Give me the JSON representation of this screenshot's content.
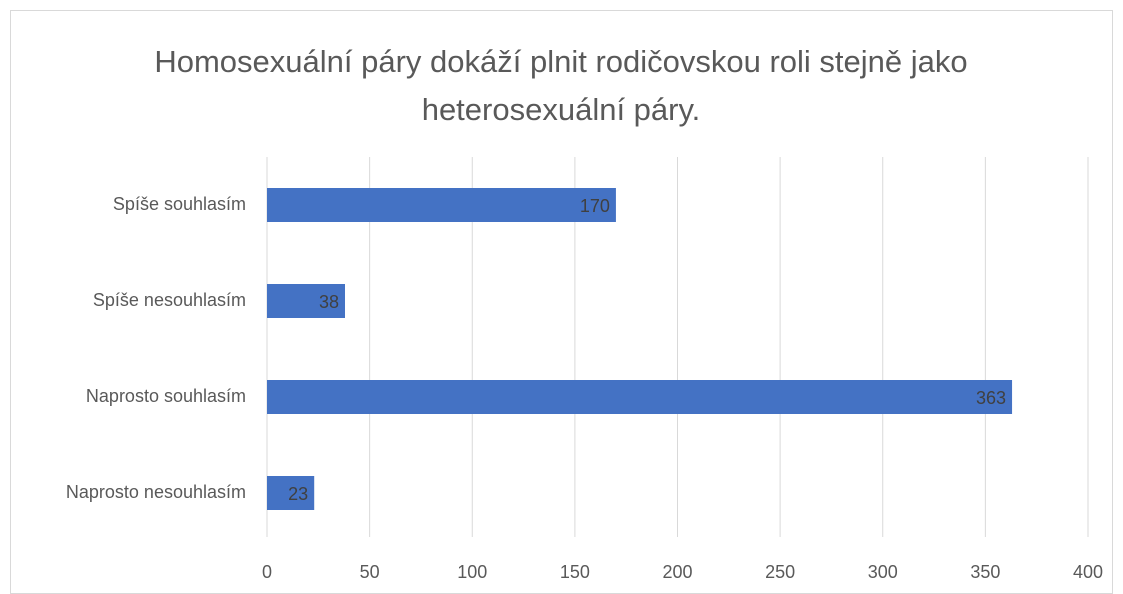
{
  "chart_data": {
    "type": "bar",
    "orientation": "horizontal",
    "title": "Homosexuální páry dokáží plnit rodičovskou roli stejně jako heterosexuální páry.",
    "categories": [
      "Spíše souhlasím",
      "Spíše nesouhlasím",
      "Naprosto souhlasím",
      "Naprosto nesouhlasím"
    ],
    "values": [
      170,
      38,
      363,
      23
    ],
    "color": "#4472c4",
    "xlim": [
      0,
      400
    ],
    "xticks": [
      0,
      50,
      100,
      150,
      200,
      250,
      300,
      350,
      400
    ],
    "grid": true,
    "data_labels": true
  }
}
